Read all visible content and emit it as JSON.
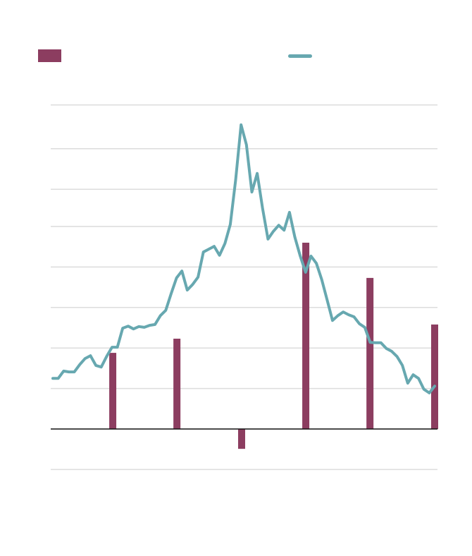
{
  "chart_data": {
    "type": "bar+line",
    "title": "",
    "xlabel": "",
    "ylabel": "",
    "ylim": [
      -1,
      8
    ],
    "xlim": [
      0,
      72
    ],
    "grid": true,
    "gridlines": [
      -1,
      1,
      2,
      3,
      4,
      5,
      5.92,
      6.92,
      8
    ],
    "legend": {
      "placement": "top",
      "entries": [
        {
          "label": "",
          "type": "bar",
          "color": "#8c3d60"
        },
        {
          "label": "",
          "type": "line",
          "color": "#67a8b0"
        }
      ]
    },
    "bar_series": {
      "name": "",
      "color": "#8c3d60",
      "x": [
        11.3,
        23.4,
        35.6,
        47.7,
        59.8,
        72
      ],
      "values": [
        1.88,
        2.23,
        -0.49,
        4.6,
        3.73,
        2.58
      ]
    },
    "line_series": {
      "name": "",
      "color": "#67a8b0",
      "values": [
        1.25,
        1.25,
        1.43,
        1.41,
        1.41,
        1.59,
        1.74,
        1.81,
        1.57,
        1.53,
        1.79,
        2.02,
        2.02,
        2.49,
        2.54,
        2.47,
        2.53,
        2.51,
        2.56,
        2.58,
        2.8,
        2.93,
        3.34,
        3.73,
        3.9,
        3.43,
        3.57,
        3.75,
        4.37,
        4.44,
        4.51,
        4.29,
        4.58,
        5.05,
        6.15,
        7.51,
        7.02,
        5.85,
        6.31,
        5.45,
        4.69,
        4.88,
        5.03,
        4.91,
        5.35,
        4.74,
        4.27,
        3.87,
        4.27,
        4.09,
        3.69,
        3.19,
        2.68,
        2.8,
        2.89,
        2.82,
        2.77,
        2.6,
        2.51,
        2.14,
        2.13,
        2.13,
        1.99,
        1.92,
        1.79,
        1.57,
        1.13,
        1.34,
        1.25,
        0.98,
        0.89,
        1.06
      ]
    }
  }
}
